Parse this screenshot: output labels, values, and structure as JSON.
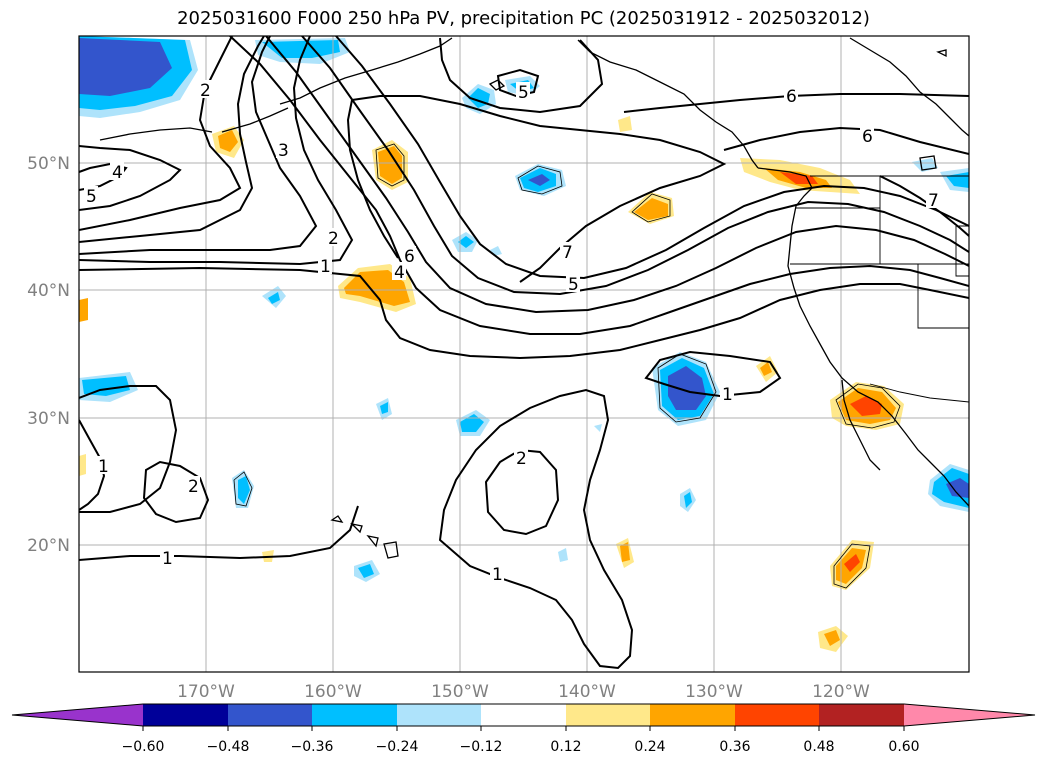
{
  "title": "2025031600 F000 250 hPa PV, precipitation PC (2025031912 - 2025032012)",
  "map": {
    "lon_range": [
      -180,
      -110
    ],
    "lat_range": [
      10,
      60
    ],
    "gridlines": true,
    "lon_ticks": [
      {
        "lon": -170,
        "label": "170°W"
      },
      {
        "lon": -160,
        "label": "160°W"
      },
      {
        "lon": -150,
        "label": "150°W"
      },
      {
        "lon": -140,
        "label": "140°W"
      },
      {
        "lon": -130,
        "label": "130°W"
      },
      {
        "lon": -120,
        "label": "120°W"
      }
    ],
    "lat_ticks": [
      {
        "lat": 50,
        "label": "50°N"
      },
      {
        "lat": 40,
        "label": "40°N"
      },
      {
        "lat": 30,
        "label": "30°N"
      },
      {
        "lat": 20,
        "label": "20°N"
      }
    ],
    "contour_labels": [
      "2",
      "3",
      "4",
      "5",
      "1",
      "2",
      "6",
      "7",
      "5",
      "6",
      "6",
      "7",
      "5",
      "1",
      "2",
      "1",
      "1",
      "2",
      "1",
      "4"
    ]
  },
  "colorbar": {
    "extend": "both",
    "levels": [
      "−0.60",
      "−0.48",
      "−0.36",
      "−0.24",
      "−0.12",
      "0.12",
      "0.24",
      "0.36",
      "0.48",
      "0.60"
    ],
    "colors": {
      "under": "#9933cc",
      "b1": "#000099",
      "b2": "#3355cc",
      "b3": "#00bfff",
      "b4": "#aee3fb",
      "b5": "#ffffff",
      "b6": "#ffe88a",
      "b7": "#ffa500",
      "b8": "#ff4400",
      "b9": "#b22222",
      "over": "#ff88aa"
    }
  }
}
